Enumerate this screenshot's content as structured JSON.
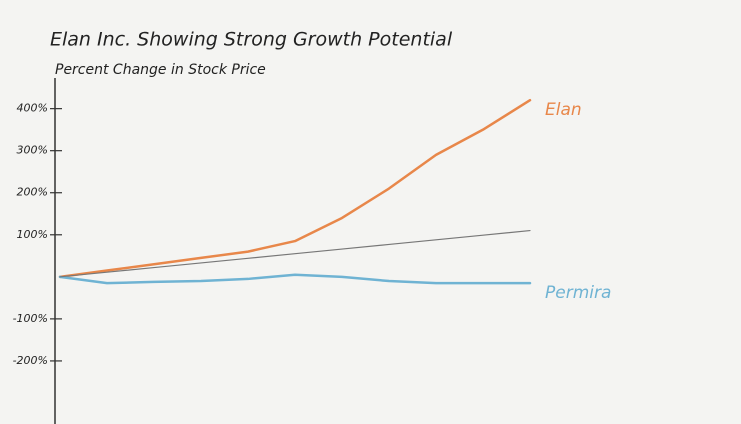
{
  "chart_data": {
    "type": "line",
    "title": "Elan Inc. Showing Strong Growth Potential",
    "subtitle": "Percent Change in Stock Price",
    "categories": [
      null,
      null,
      null,
      null,
      null,
      null,
      null,
      null,
      null,
      null,
      null
    ],
    "series": [
      {
        "name": "Elan",
        "color": "#e8874a",
        "values": [
          0,
          15,
          30,
          45,
          60,
          85,
          140,
          210,
          290,
          350,
          420
        ]
      },
      {
        "name": "Permira",
        "color": "#6fb3d3",
        "values": [
          0,
          -15,
          -12,
          -10,
          -5,
          5,
          0,
          -10,
          -15,
          -15,
          -15
        ]
      },
      {
        "color": "#777777",
        "values": [
          0,
          11,
          22,
          33,
          44,
          55,
          66,
          77,
          88,
          99,
          110
        ]
      }
    ],
    "ylim": [
      -350,
      480
    ],
    "yticks": [
      {
        "value": 400,
        "label": "400%"
      },
      {
        "value": 300,
        "label": "300%"
      },
      {
        "value": 200,
        "label": "200%"
      },
      {
        "value": 100,
        "label": "100%"
      },
      {
        "value": -100,
        "label": "-100%"
      },
      {
        "value": -200,
        "label": "-200%"
      }
    ]
  }
}
